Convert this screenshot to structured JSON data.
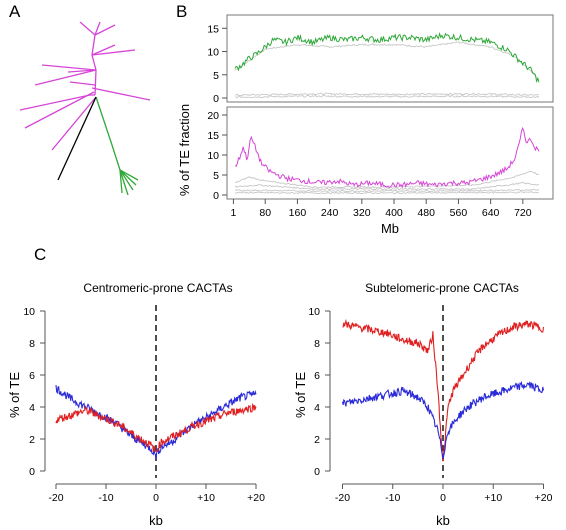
{
  "panel_labels": {
    "a": "A",
    "b": "B",
    "c": "C"
  },
  "colors": {
    "magenta": "#d645d6",
    "green": "#2fa83a",
    "black": "#000000",
    "grey": "#c8c8c8",
    "red": "#e02020",
    "blue": "#2a2ad8"
  },
  "chart_data": [
    {
      "type": "diagram",
      "panel": "A",
      "description_kind": "unrooted-tree",
      "clades": [
        {
          "name": "magenta-clade",
          "color": "#d645d6",
          "leaves": 16
        },
        {
          "name": "green-clade",
          "color": "#2fa83a",
          "leaves": 6
        },
        {
          "name": "black-branch",
          "color": "#000000",
          "leaves": 1
        }
      ]
    },
    {
      "type": "line",
      "panel": "B-top",
      "ylabel": "% of TE fraction",
      "yticks": [
        0,
        5,
        10,
        15
      ],
      "ylim": [
        0,
        17
      ],
      "xlim": [
        0,
        780
      ],
      "series": [
        {
          "color": "#2fa83a",
          "anchors_x": [
            5,
            20,
            40,
            60,
            80,
            100,
            130,
            160,
            200,
            240,
            280,
            320,
            360,
            400,
            440,
            480,
            520,
            560,
            600,
            640,
            680,
            700,
            720,
            740,
            760
          ],
          "anchors_y": [
            6.2,
            7.0,
            8.5,
            9.5,
            11.0,
            12.5,
            12.0,
            13.0,
            12.0,
            13.0,
            12.5,
            13.0,
            12.5,
            13.0,
            13.0,
            12.5,
            13.5,
            13.0,
            12.5,
            12.0,
            10.5,
            9.0,
            7.5,
            6.0,
            3.5
          ]
        },
        {
          "color": "#c8c8c8",
          "anchors_x": [
            5,
            40,
            80,
            160,
            240,
            320,
            400,
            480,
            560,
            640,
            700,
            760
          ],
          "anchors_y": [
            6.0,
            8.0,
            10.5,
            11.5,
            11.0,
            11.5,
            11.5,
            11.0,
            12.0,
            11.0,
            9.0,
            4.0
          ]
        },
        {
          "color": "#c8c8c8",
          "anchors_x": [
            5,
            200,
            400,
            600,
            760
          ],
          "anchors_y": [
            0.6,
            0.9,
            0.8,
            0.9,
            0.6
          ]
        },
        {
          "color": "#c8c8c8",
          "anchors_x": [
            5,
            200,
            400,
            600,
            760
          ],
          "anchors_y": [
            0.2,
            0.4,
            0.3,
            0.4,
            0.2
          ]
        }
      ]
    },
    {
      "type": "line",
      "panel": "B-bottom",
      "xlabel": "Mb",
      "xticks": [
        1,
        80,
        160,
        240,
        320,
        400,
        480,
        560,
        640,
        720
      ],
      "yticks": [
        0,
        5,
        10,
        15,
        20
      ],
      "ylim": [
        0,
        21
      ],
      "xlim": [
        0,
        780
      ],
      "series": [
        {
          "color": "#d645d6",
          "anchors_x": [
            5,
            15,
            25,
            35,
            45,
            55,
            70,
            90,
            110,
            140,
            180,
            220,
            260,
            300,
            340,
            380,
            420,
            460,
            500,
            540,
            580,
            620,
            650,
            680,
            700,
            712,
            720,
            730,
            740,
            750,
            760
          ],
          "anchors_y": [
            7.0,
            9.0,
            12.0,
            9.0,
            14.5,
            12.0,
            8.0,
            6.0,
            5.0,
            4.0,
            3.5,
            3.0,
            3.5,
            2.5,
            3.0,
            2.5,
            2.5,
            3.0,
            2.5,
            3.0,
            3.0,
            4.0,
            5.0,
            6.5,
            9.0,
            13.0,
            17.0,
            13.0,
            14.0,
            12.0,
            11.0
          ]
        },
        {
          "color": "#c8c8c8",
          "anchors_x": [
            5,
            40,
            80,
            200,
            400,
            600,
            700,
            740,
            760
          ],
          "anchors_y": [
            3.0,
            4.5,
            3.5,
            2.0,
            2.0,
            2.5,
            4.5,
            6.0,
            5.0
          ]
        },
        {
          "color": "#c8c8c8",
          "anchors_x": [
            5,
            60,
            200,
            400,
            600,
            720,
            760
          ],
          "anchors_y": [
            2.0,
            2.5,
            1.5,
            1.5,
            1.5,
            3.0,
            2.5
          ]
        },
        {
          "color": "#c8c8c8",
          "anchors_x": [
            5,
            200,
            400,
            600,
            760
          ],
          "anchors_y": [
            1.2,
            1.0,
            1.0,
            1.1,
            1.3
          ]
        },
        {
          "color": "#c8c8c8",
          "anchors_x": [
            5,
            200,
            400,
            600,
            760
          ],
          "anchors_y": [
            0.6,
            0.5,
            0.5,
            0.6,
            0.7
          ]
        }
      ]
    },
    {
      "type": "line",
      "panel": "C-left",
      "title": "Centromeric-prone CACTAs",
      "xlabel": "kb",
      "ylabel": "% of TE",
      "xticks": [
        -20,
        -10,
        0,
        10,
        20
      ],
      "xticklabels": [
        "-20",
        "-10",
        "0",
        "+10",
        "+20"
      ],
      "yticks": [
        0,
        2,
        4,
        6,
        8,
        10
      ],
      "xlim": [
        -21,
        21
      ],
      "ylim": [
        -0.3,
        10.3
      ],
      "series": [
        {
          "color": "#2a2ad8",
          "anchors_x": [
            -20,
            -17,
            -14,
            -11,
            -8,
            -5,
            -3,
            -1,
            0,
            1,
            3,
            5,
            8,
            11,
            14,
            17,
            20
          ],
          "anchors_y": [
            5.2,
            4.5,
            4.0,
            3.5,
            3.0,
            2.2,
            1.8,
            1.4,
            1.0,
            1.5,
            1.8,
            2.3,
            3.0,
            3.5,
            4.1,
            4.6,
            4.8
          ]
        },
        {
          "color": "#e02020",
          "anchors_x": [
            -20,
            -17,
            -14,
            -11,
            -8,
            -5,
            -3,
            -1,
            0,
            1,
            3,
            5,
            8,
            11,
            14,
            17,
            20
          ],
          "anchors_y": [
            3.2,
            3.5,
            3.8,
            3.4,
            3.0,
            2.4,
            2.0,
            1.6,
            1.2,
            1.8,
            2.1,
            2.4,
            2.9,
            3.2,
            3.6,
            3.8,
            4.0
          ]
        }
      ]
    },
    {
      "type": "line",
      "panel": "C-right",
      "title": "Subtelomeric-prone CACTAs",
      "xlabel": "kb",
      "ylabel": "% of TE",
      "xticks": [
        -20,
        -10,
        0,
        10,
        20
      ],
      "xticklabels": [
        "-20",
        "-10",
        "0",
        "+10",
        "+20"
      ],
      "yticks": [
        0,
        2,
        4,
        6,
        8,
        10
      ],
      "xlim": [
        -21,
        21
      ],
      "ylim": [
        -0.3,
        10.3
      ],
      "series": [
        {
          "color": "#e02020",
          "anchors_x": [
            -20,
            -17,
            -14,
            -11,
            -8,
            -5,
            -3,
            -2,
            -1,
            0,
            1,
            2,
            4,
            6,
            8,
            11,
            14,
            17,
            20
          ],
          "anchors_y": [
            9.2,
            9.0,
            8.8,
            8.6,
            8.2,
            8.0,
            7.5,
            8.5,
            5.0,
            0.5,
            4.0,
            5.0,
            6.0,
            7.0,
            7.8,
            8.5,
            9.0,
            9.2,
            8.9
          ]
        },
        {
          "color": "#2a2ad8",
          "anchors_x": [
            -20,
            -17,
            -14,
            -11,
            -8,
            -5,
            -3,
            -1,
            0,
            1,
            3,
            5,
            8,
            11,
            14,
            17,
            20
          ],
          "anchors_y": [
            4.2,
            4.4,
            4.6,
            4.8,
            5.0,
            4.6,
            4.0,
            2.5,
            0.9,
            2.5,
            3.4,
            4.0,
            4.6,
            4.9,
            5.2,
            5.4,
            5.0
          ]
        }
      ]
    }
  ]
}
